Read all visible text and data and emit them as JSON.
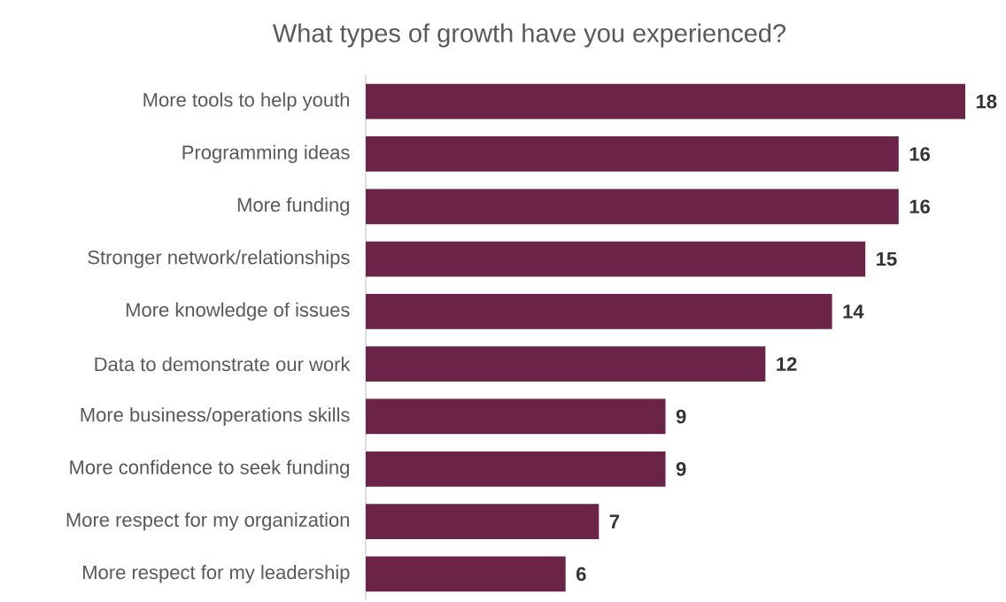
{
  "chart_data": {
    "type": "bar",
    "orientation": "horizontal",
    "title": "What types of growth have you experienced?",
    "categories": [
      "More tools to help youth",
      "Programming ideas",
      "More funding",
      "Stronger network/relationships",
      "More knowledge of issues",
      "Data to demonstrate our work",
      "More business/operations skills",
      "More confidence to seek funding",
      "More respect for my organization",
      "More respect for my leadership"
    ],
    "values": [
      18,
      16,
      16,
      15,
      14,
      12,
      9,
      9,
      7,
      6
    ],
    "color": "#6b2348",
    "data_labels": true
  }
}
